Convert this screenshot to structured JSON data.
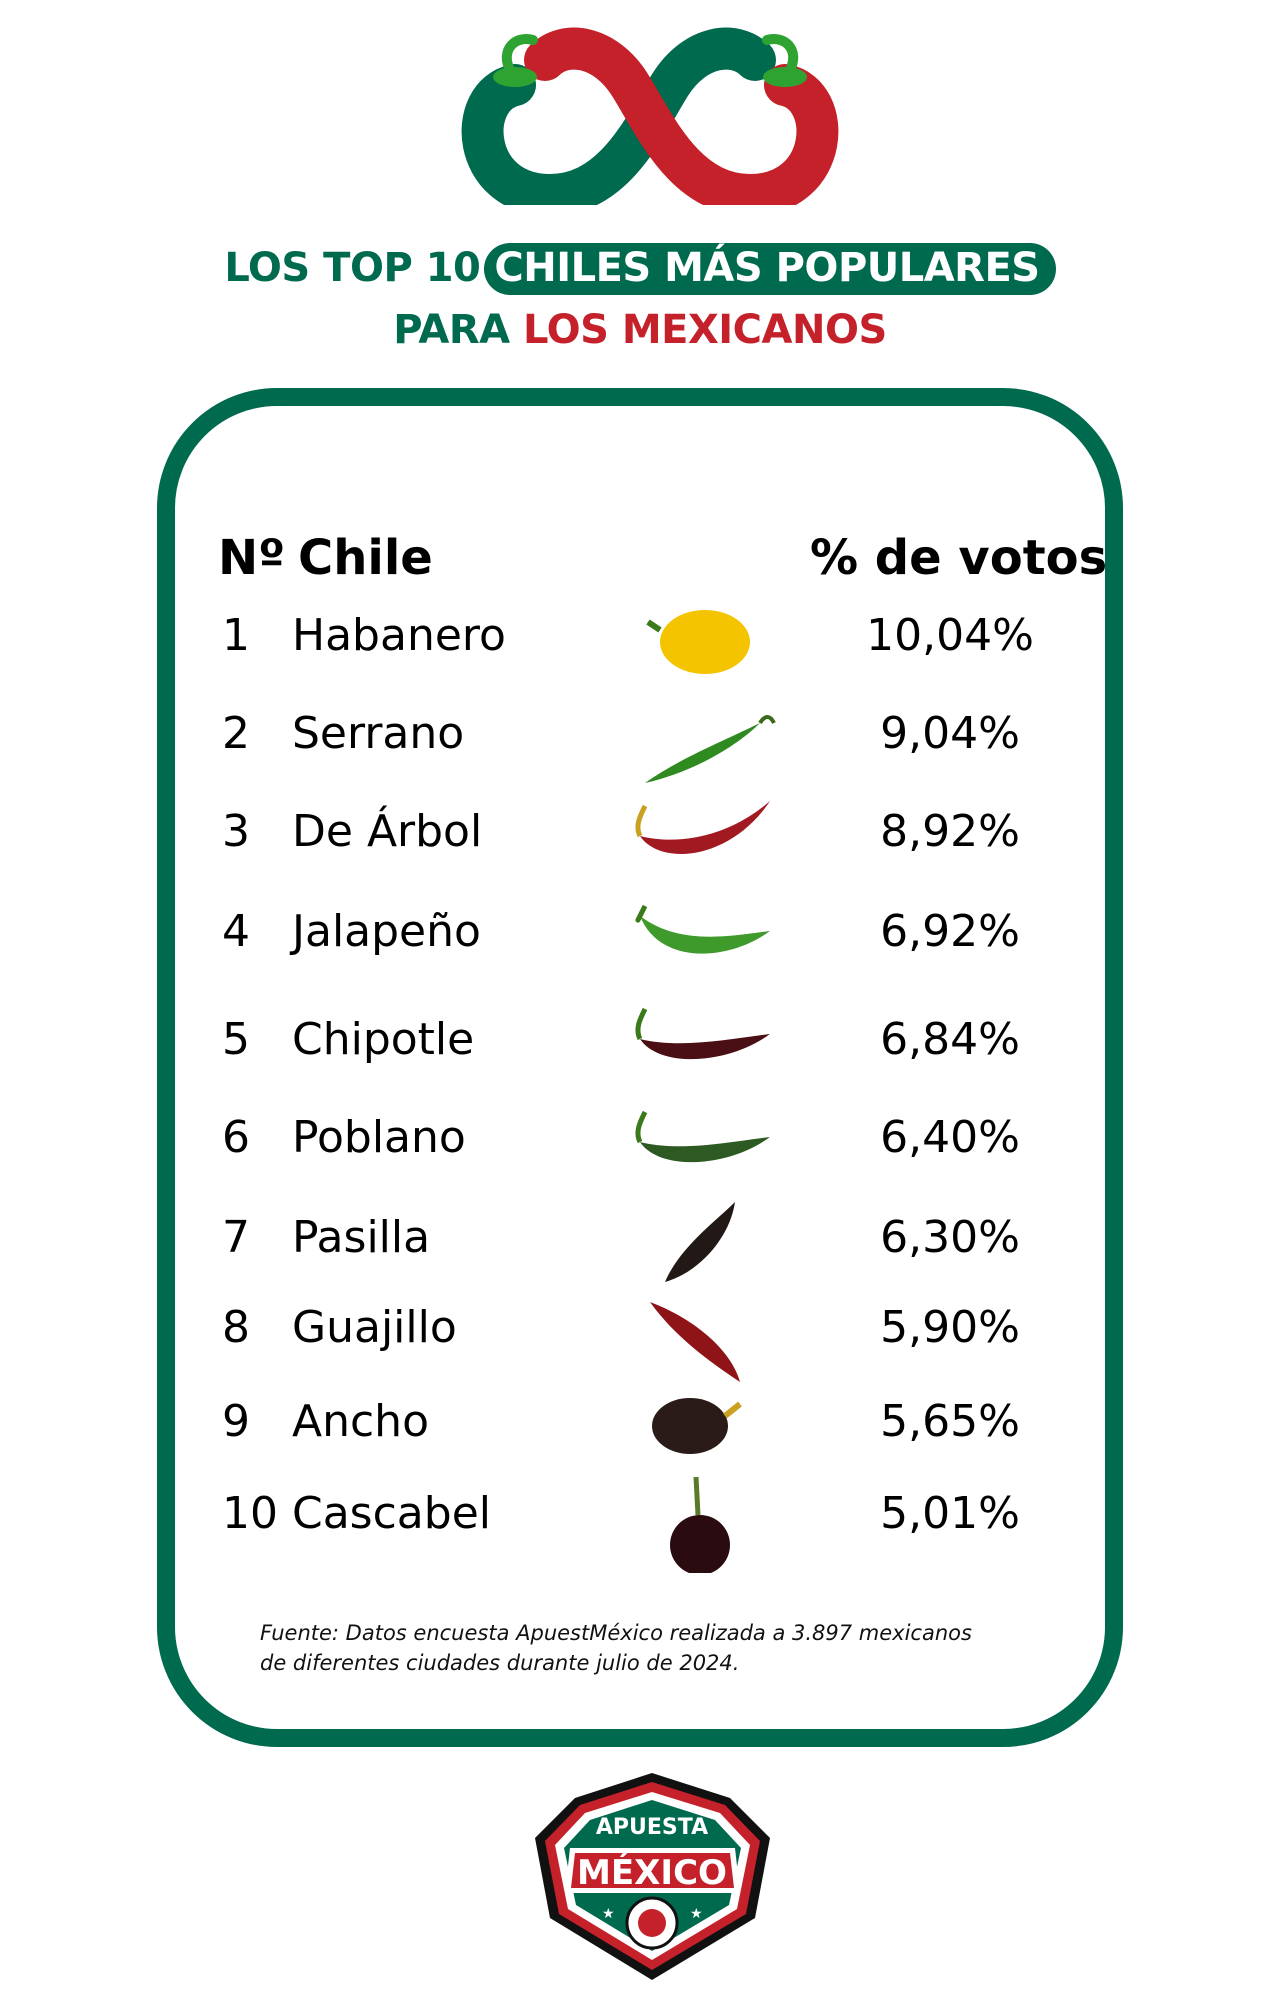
{
  "title": {
    "line1_prefix": "LOS TOP 10",
    "line1_highlight": "CHILES MÁS POPULARES",
    "line2_prefix": "PARA",
    "line2_highlight": "LOS MEXICANOS"
  },
  "colors": {
    "green": "#006a4e",
    "red": "#c4212a"
  },
  "table": {
    "headers": {
      "number": "Nº",
      "chile": "Chile",
      "votes": "% de votos"
    },
    "rows": [
      {
        "n": "1",
        "name": "Habanero",
        "pct": "10,04%",
        "icon": "habanero-pepper",
        "color": "#f5c400"
      },
      {
        "n": "2",
        "name": "Serrano",
        "pct": "9,04%",
        "icon": "serrano-pepper",
        "color": "#2f8a1f"
      },
      {
        "n": "3",
        "name": "De Árbol",
        "pct": "8,92%",
        "icon": "arbol-pepper",
        "color": "#a11a22"
      },
      {
        "n": "4",
        "name": "Jalapeño",
        "pct": "6,92%",
        "icon": "jalapeno-pepper",
        "color": "#3f9a2c"
      },
      {
        "n": "5",
        "name": "Chipotle",
        "pct": "6,84%",
        "icon": "chipotle-pepper",
        "color": "#4a0f14"
      },
      {
        "n": "6",
        "name": "Poblano",
        "pct": "6,40%",
        "icon": "poblano-pepper",
        "color": "#2d5a22"
      },
      {
        "n": "7",
        "name": "Pasilla",
        "pct": "6,30%",
        "icon": "pasilla-pepper",
        "color": "#221816"
      },
      {
        "n": "8",
        "name": "Guajillo",
        "pct": "5,90%",
        "icon": "guajillo-pepper",
        "color": "#8e1418"
      },
      {
        "n": "9",
        "name": "Ancho",
        "pct": "5,65%",
        "icon": "ancho-pepper",
        "color": "#2a1a18"
      },
      {
        "n": "10",
        "name": "Cascabel",
        "pct": "5,01%",
        "icon": "cascabel-pepper",
        "color": "#2a0c10"
      }
    ]
  },
  "footer": {
    "source_line1": "Fuente: Datos encuesta ApuestMéxico realizada a 3.897 mexicanos",
    "source_line2": "de diferentes ciudades durante julio de 2024."
  },
  "brand": {
    "line1": "APUESTA",
    "line2": "MÉXICO"
  }
}
